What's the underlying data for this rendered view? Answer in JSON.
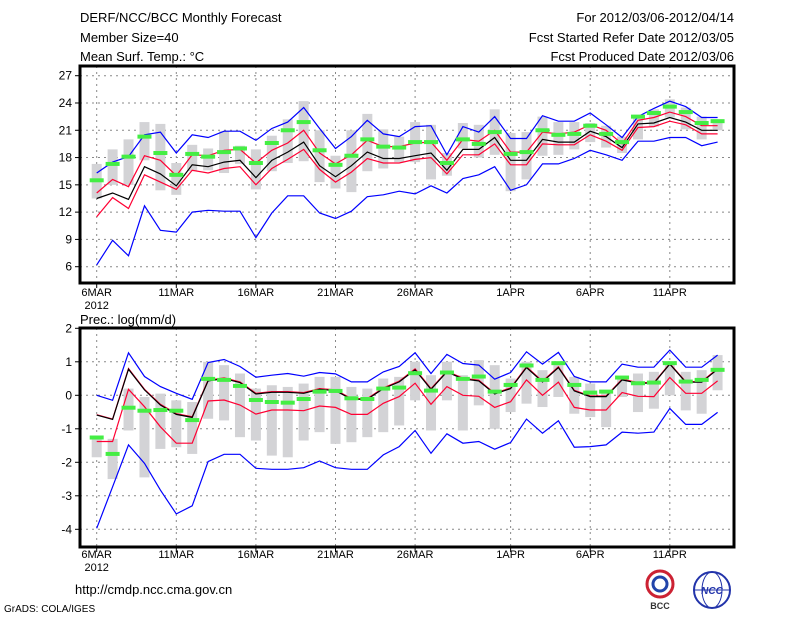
{
  "header": {
    "title": "DERF/NCC/BCC Monthly Forecast",
    "member_size": "Member Size=40",
    "variable": "Mean Surf. Temp.: °C",
    "period": "For 2012/03/06-2012/04/14",
    "start_date": "Fcst Started Refer Date 2012/03/05",
    "produced_date": "Fcst Produced Date 2012/03/06"
  },
  "footer": {
    "url": "http://cmdp.ncc.cma.gov.cn",
    "credit": "GrADS: COLA/IGES",
    "logo_left": "BCC",
    "logo_right": "NCC"
  },
  "colors": {
    "envelope": "#0000ff",
    "spread": "#ff0033",
    "mean": "#000000",
    "observed": "#44ee44",
    "range_bar": "#d3d3d6",
    "grid": "#888888"
  },
  "chart_data": [
    {
      "type": "line",
      "title": "Mean Surf. Temp.: °C",
      "ylabel": "",
      "ylim": [
        4,
        28
      ],
      "yticks": [
        "6",
        "9",
        "12",
        "15",
        "18",
        "21",
        "24",
        "27"
      ],
      "ytick_values": [
        6,
        9,
        12,
        15,
        18,
        21,
        24,
        27
      ],
      "xtick_labels": [
        "6MAR",
        "11MAR",
        "16MAR",
        "21MAR",
        "26MAR",
        "1APR",
        "6APR",
        "11APR"
      ],
      "xtick_days": [
        0,
        5,
        10,
        15,
        20,
        26,
        31,
        36
      ],
      "year_label": "2012",
      "days": 40,
      "grid": true,
      "series": [
        {
          "name": "upper-envelope",
          "role": "envelope",
          "values": [
            16.3,
            17.5,
            18.1,
            20.5,
            20.8,
            18.5,
            20.5,
            20.2,
            20.9,
            20.9,
            19.9,
            21.2,
            21.9,
            23.5,
            21.2,
            19.0,
            20.3,
            22.1,
            20.6,
            20.3,
            21.4,
            21.5,
            18.3,
            21.4,
            20.8,
            22.5,
            20.1,
            20.1,
            22.6,
            22.0,
            22.0,
            22.9,
            21.6,
            20.2,
            22.5,
            23.4,
            24.2,
            23.6,
            22.4,
            22.4
          ]
        },
        {
          "name": "upper-spread",
          "role": "spread",
          "values": [
            14.1,
            15.6,
            14.8,
            18.2,
            17.7,
            16.0,
            18.3,
            18.2,
            18.8,
            18.9,
            17.4,
            18.8,
            19.6,
            21.0,
            18.5,
            17.3,
            18.3,
            19.9,
            19.2,
            19.2,
            19.6,
            19.7,
            17.7,
            20.0,
            19.8,
            21.0,
            18.6,
            18.6,
            20.8,
            20.6,
            20.8,
            21.6,
            21.0,
            19.5,
            22.1,
            22.4,
            23.0,
            22.5,
            21.5,
            21.5
          ]
        },
        {
          "name": "ensemble-mean",
          "role": "mean",
          "values": [
            13.5,
            14.1,
            13.4,
            17.0,
            16.2,
            14.9,
            17.2,
            17.0,
            17.5,
            17.7,
            15.8,
            17.7,
            18.6,
            19.7,
            17.1,
            15.9,
            17.1,
            18.6,
            17.9,
            17.9,
            18.2,
            18.5,
            16.6,
            18.9,
            18.9,
            20.2,
            17.7,
            17.7,
            20.0,
            19.7,
            19.7,
            20.9,
            20.3,
            19.1,
            21.7,
            21.8,
            22.4,
            21.9,
            21.0,
            21.0
          ]
        },
        {
          "name": "lower-spread",
          "role": "spread",
          "values": [
            11.5,
            13.6,
            12.4,
            16.1,
            15.3,
            14.5,
            16.6,
            16.3,
            16.8,
            17.0,
            15.0,
            16.8,
            17.8,
            18.9,
            16.7,
            15.3,
            16.4,
            17.9,
            17.4,
            17.4,
            17.8,
            18.0,
            16.2,
            18.3,
            18.3,
            19.5,
            17.2,
            17.2,
            19.5,
            19.4,
            19.4,
            20.5,
            19.8,
            18.8,
            21.3,
            21.4,
            22.0,
            21.6,
            20.6,
            20.6
          ]
        },
        {
          "name": "lower-envelope",
          "role": "envelope",
          "values": [
            6.2,
            8.9,
            7.2,
            12.7,
            10.0,
            9.8,
            12.0,
            12.2,
            12.1,
            12.1,
            9.2,
            11.9,
            13.8,
            13.8,
            11.9,
            11.3,
            12.1,
            13.7,
            13.9,
            14.3,
            14.0,
            14.9,
            14.1,
            15.7,
            16.1,
            17.0,
            14.4,
            15.0,
            17.3,
            17.3,
            17.9,
            18.8,
            18.3,
            17.7,
            19.8,
            19.8,
            20.2,
            20.2,
            19.3,
            19.7
          ]
        }
      ],
      "markers": [
        15.5,
        17.3,
        18.1,
        20.3,
        18.5,
        16.1,
        18.4,
        18.1,
        18.6,
        19.0,
        17.4,
        19.6,
        21.0,
        21.9,
        18.8,
        17.2,
        18.2,
        20.0,
        19.2,
        19.1,
        19.7,
        19.7,
        17.4,
        20.0,
        19.5,
        20.8,
        18.4,
        18.6,
        21.0,
        20.5,
        20.6,
        21.5,
        20.6,
        19.7,
        22.5,
        22.9,
        23.6,
        23.0,
        21.8,
        22.0
      ],
      "range_bars": [
        [
          13.5,
          17.3
        ],
        [
          15.0,
          18.9
        ],
        [
          15.0,
          20.0
        ],
        [
          17.7,
          21.9
        ],
        [
          14.4,
          21.7
        ],
        [
          13.9,
          17.4
        ],
        [
          16.5,
          19.4
        ],
        [
          16.6,
          19.0
        ],
        [
          16.3,
          20.9
        ],
        [
          17.3,
          19.3
        ],
        [
          14.5,
          18.9
        ],
        [
          16.5,
          20.4
        ],
        [
          17.4,
          22.2
        ],
        [
          17.6,
          24.2
        ],
        [
          15.3,
          21.0
        ],
        [
          14.6,
          18.2
        ],
        [
          14.2,
          21.0
        ],
        [
          16.5,
          22.8
        ],
        [
          16.8,
          21.1
        ],
        [
          17.5,
          20.3
        ],
        [
          17.5,
          21.9
        ],
        [
          15.6,
          21.6
        ],
        [
          16.0,
          18.5
        ],
        [
          19.0,
          21.8
        ],
        [
          18.0,
          21.6
        ],
        [
          18.3,
          23.3
        ],
        [
          14.3,
          20.7
        ],
        [
          15.6,
          20.8
        ],
        [
          18.2,
          22.5
        ],
        [
          18.3,
          21.9
        ],
        [
          18.9,
          21.9
        ],
        [
          19.7,
          21.8
        ],
        [
          19.1,
          21.5
        ],
        [
          18.5,
          20.3
        ],
        [
          20.0,
          22.7
        ],
        [
          21.4,
          23.3
        ],
        [
          22.4,
          24.4
        ],
        [
          21.1,
          23.5
        ],
        [
          20.0,
          22.5
        ],
        [
          21.0,
          22.2
        ]
      ]
    },
    {
      "type": "line",
      "title": "Prec.: log(mm/d)",
      "ylabel": "",
      "ylim": [
        -4.5,
        2
      ],
      "yticks": [
        "2",
        "1",
        "0",
        "-1",
        "-2",
        "-3",
        "-4"
      ],
      "ytick_values": [
        2,
        1,
        0,
        -1,
        -2,
        -3,
        -4
      ],
      "xtick_labels": [
        "6MAR",
        "11MAR",
        "16MAR",
        "21MAR",
        "26MAR",
        "1APR",
        "6APR",
        "11APR"
      ],
      "xtick_days": [
        0,
        5,
        10,
        15,
        20,
        26,
        31,
        36
      ],
      "year_label": "2012",
      "days": 40,
      "grid": true,
      "series": [
        {
          "name": "upper-envelope",
          "role": "envelope",
          "values": [
            0.0,
            -0.15,
            1.27,
            0.56,
            0.26,
            0.06,
            -0.12,
            0.98,
            1.07,
            0.86,
            0.54,
            0.6,
            0.65,
            0.57,
            0.68,
            0.64,
            0.4,
            0.4,
            0.7,
            0.86,
            1.27,
            0.65,
            1.22,
            0.95,
            0.9,
            0.48,
            0.68,
            1.3,
            0.93,
            1.28,
            0.56,
            0.4,
            0.4,
            0.93,
            0.84,
            0.84,
            1.35,
            0.84,
            0.84,
            1.2
          ]
        },
        {
          "name": "upper-spread",
          "role": "spread",
          "values": [
            -0.58,
            -0.71,
            0.8,
            0.18,
            -0.27,
            -0.55,
            -0.64,
            0.45,
            0.52,
            0.4,
            0.06,
            0.11,
            0.11,
            0.08,
            0.2,
            0.16,
            -0.1,
            -0.1,
            0.22,
            0.42,
            0.79,
            0.2,
            0.72,
            0.51,
            0.45,
            0.06,
            0.22,
            0.85,
            0.42,
            0.85,
            0.15,
            -0.02,
            -0.02,
            0.48,
            0.38,
            0.38,
            0.95,
            0.41,
            0.41,
            0.8
          ]
        },
        {
          "name": "ensemble-mean",
          "role": "mean",
          "values": [
            -0.59,
            -0.72,
            0.78,
            0.16,
            -0.29,
            -0.57,
            -0.66,
            0.43,
            0.5,
            0.38,
            0.04,
            0.09,
            0.09,
            0.06,
            0.18,
            0.14,
            -0.12,
            -0.12,
            0.2,
            0.4,
            0.76,
            0.18,
            0.7,
            0.49,
            0.43,
            0.04,
            0.2,
            0.83,
            0.4,
            0.83,
            0.13,
            -0.04,
            -0.04,
            0.46,
            0.36,
            0.36,
            0.93,
            0.39,
            0.39,
            0.78
          ]
        },
        {
          "name": "lower-spread",
          "role": "spread",
          "values": [
            -1.38,
            -1.38,
            0.18,
            -0.34,
            -0.94,
            -1.43,
            -1.43,
            -0.17,
            -0.14,
            -0.29,
            -0.56,
            -0.44,
            -0.44,
            -0.46,
            -0.32,
            -0.36,
            -0.57,
            -0.57,
            -0.24,
            -0.04,
            0.36,
            -0.27,
            0.26,
            0.0,
            -0.03,
            -0.36,
            -0.19,
            0.46,
            0.0,
            0.39,
            -0.36,
            -0.44,
            -0.44,
            0.08,
            -0.03,
            -0.04,
            0.53,
            0.06,
            0.06,
            0.43
          ]
        },
        {
          "name": "lower-envelope",
          "role": "envelope",
          "values": [
            -3.97,
            -2.73,
            -1.48,
            -2.03,
            -2.83,
            -3.54,
            -3.3,
            -1.98,
            -1.76,
            -1.76,
            -2.18,
            -2.21,
            -2.21,
            -2.16,
            -1.96,
            -2.16,
            -2.21,
            -2.21,
            -1.78,
            -1.53,
            -1.05,
            -1.73,
            -1.15,
            -1.43,
            -1.38,
            -1.61,
            -1.41,
            -0.71,
            -1.13,
            -0.76,
            -1.55,
            -1.53,
            -1.48,
            -1.1,
            -1.13,
            -1.1,
            -0.39,
            -0.87,
            -0.87,
            -0.51
          ]
        }
      ],
      "markers": [
        -1.26,
        -1.75,
        -0.37,
        -0.46,
        -0.44,
        -0.46,
        -0.74,
        0.49,
        0.46,
        0.28,
        -0.14,
        -0.2,
        -0.22,
        -0.11,
        0.11,
        0.13,
        -0.09,
        -0.11,
        0.2,
        0.23,
        0.66,
        0.14,
        0.68,
        0.49,
        0.56,
        0.11,
        0.31,
        0.89,
        0.46,
        0.96,
        0.31,
        0.08,
        0.11,
        0.53,
        0.36,
        0.38,
        0.96,
        0.41,
        0.46,
        0.76
      ],
      "range_bars": [
        [
          -1.85,
          -1.2
        ],
        [
          -2.5,
          -1.3
        ],
        [
          -1.05,
          0.2
        ],
        [
          -2.45,
          -0.05
        ],
        [
          -1.6,
          0.05
        ],
        [
          -1.55,
          -0.15
        ],
        [
          -1.75,
          -0.2
        ],
        [
          -0.7,
          1.0
        ],
        [
          -0.75,
          0.9
        ],
        [
          -1.25,
          0.65
        ],
        [
          -1.35,
          0.2
        ],
        [
          -1.8,
          0.3
        ],
        [
          -1.85,
          0.25
        ],
        [
          -1.35,
          0.35
        ],
        [
          -1.1,
          0.55
        ],
        [
          -1.45,
          0.55
        ],
        [
          -1.4,
          0.25
        ],
        [
          -1.25,
          0.2
        ],
        [
          -1.1,
          0.5
        ],
        [
          -0.9,
          0.55
        ],
        [
          -0.15,
          1.0
        ],
        [
          -1.05,
          0.6
        ],
        [
          -0.15,
          1.0
        ],
        [
          -1.05,
          0.6
        ],
        [
          -0.3,
          1.05
        ],
        [
          -1.0,
          0.9
        ],
        [
          -0.5,
          0.5
        ],
        [
          -0.25,
          1.0
        ],
        [
          -0.35,
          0.75
        ],
        [
          -0.05,
          0.95
        ],
        [
          -0.55,
          0.55
        ],
        [
          -0.65,
          0.35
        ],
        [
          -0.95,
          0.1
        ],
        [
          -0.05,
          0.55
        ],
        [
          -0.5,
          0.65
        ],
        [
          -0.4,
          0.7
        ],
        [
          0.0,
          1.0
        ],
        [
          -0.45,
          0.7
        ],
        [
          -0.55,
          0.75
        ],
        [
          0.15,
          1.2
        ]
      ]
    }
  ]
}
